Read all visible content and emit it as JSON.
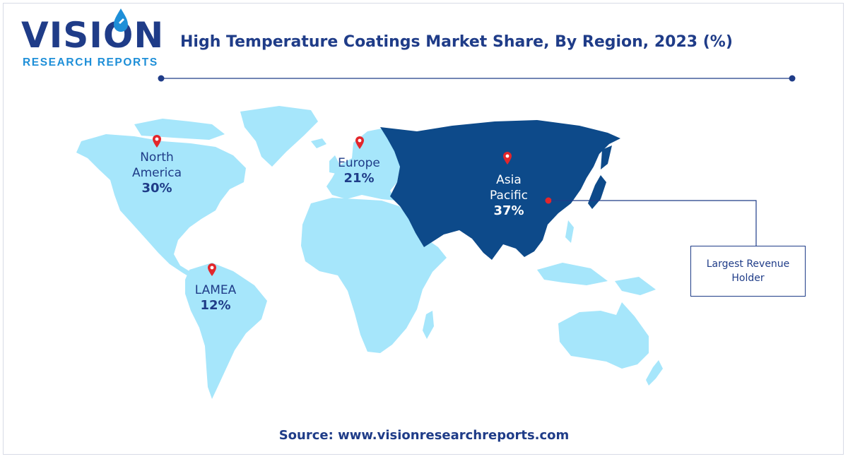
{
  "brand": {
    "name": "VISION",
    "subtitle": "RESEARCH REPORTS"
  },
  "title": "High Temperature Coatings Market Share, By Region, 2023 (%)",
  "colors": {
    "accent": "#1f3c88",
    "highlight_region": "#0d4a8a",
    "other_regions": "#a6e6fb",
    "pin": "#e3262b"
  },
  "regions": [
    {
      "id": "north-america",
      "name_lines": [
        "North",
        "America"
      ],
      "value": "30%",
      "highlighted": false
    },
    {
      "id": "europe",
      "name_lines": [
        "Europe"
      ],
      "value": "21%",
      "highlighted": false
    },
    {
      "id": "asia-pacific",
      "name_lines": [
        "Asia",
        "Pacific"
      ],
      "value": "37%",
      "highlighted": true
    },
    {
      "id": "lamea",
      "name_lines": [
        "LAMEA"
      ],
      "value": "12%",
      "highlighted": false
    }
  ],
  "callout": {
    "text": "Largest Revenue Holder"
  },
  "source": "Source: www.visionresearchreports.com"
}
